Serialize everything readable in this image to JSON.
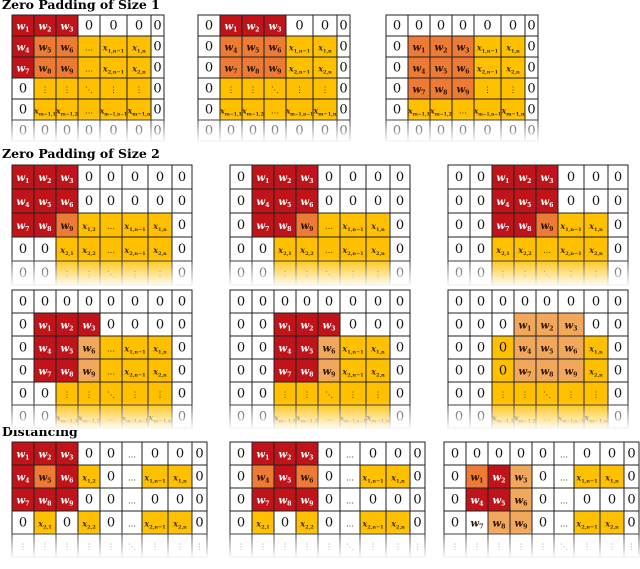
{
  "colors": {
    "red": "#c0141a",
    "orange": "#ed7b35",
    "lightOrange": "#f2a85c",
    "yellow": "#ffc000",
    "white": "#ffffff",
    "border": "#222222",
    "kernelText": "#ffffff",
    "dataText": "#3a2a00"
  },
  "sections": [
    {
      "id": "zp1",
      "title": "Zero Padding of Size 1"
    },
    {
      "id": "zp2",
      "title": "Zero Padding of Size 2"
    },
    {
      "id": "dist",
      "title": "Distancing"
    }
  ],
  "zp1_labels": [
    [
      "w1",
      "w2",
      "w3",
      "0",
      "0",
      "0",
      "0"
    ],
    [
      "w4",
      "w5",
      "w6",
      "…",
      "x1,n−1",
      "x1,n",
      "0"
    ],
    [
      "w7",
      "w8",
      "w9",
      "…",
      "x2,n−1",
      "x2,n",
      "0"
    ],
    [
      "0",
      "⋮",
      "⋮",
      "⋱",
      "⋮",
      "⋮",
      "0"
    ],
    [
      "0",
      "xm−1,1",
      "xm−1,2",
      "…",
      "xm−1,n−1",
      "xm−1,n",
      "0"
    ],
    [
      "0",
      "0",
      "0",
      "0",
      "0",
      "0",
      "0"
    ]
  ],
  "zp1_panels": [
    {
      "labels": [
        [
          "w1",
          "w2",
          "w3",
          "0",
          "0",
          "0",
          "0"
        ],
        [
          "w4",
          "w5",
          "w6",
          "…",
          "x1,n−1",
          "x1,n",
          "0"
        ],
        [
          "w7",
          "w8",
          "w9",
          "…",
          "x2,n−1",
          "x2,n",
          "0"
        ],
        [
          "0",
          "⋮",
          "⋮",
          "⋱",
          "⋮",
          "⋮",
          "0"
        ],
        [
          "0",
          "xm−1,1",
          "xm−1,2",
          "…",
          "xm−1,n−1",
          "xm−1,n",
          "0"
        ],
        [
          "0",
          "0",
          "0",
          "0",
          "0",
          "0",
          "0"
        ]
      ]
    },
    {
      "labels": [
        [
          "0",
          "w1",
          "w2",
          "w3",
          "0",
          "0",
          "0"
        ],
        [
          "0",
          "w4",
          "w5",
          "w6",
          "x1,n−1",
          "x1,n",
          "0"
        ],
        [
          "0",
          "w7",
          "w8",
          "w9",
          "x2,n−1",
          "x2,n",
          "0"
        ],
        [
          "0",
          "⋮",
          "⋮",
          "⋱",
          "⋮",
          "⋮",
          "0"
        ],
        [
          "0",
          "xm−1,1",
          "xm−1,2",
          "…",
          "xm−1,n−1",
          "xm−1,n",
          "0"
        ],
        [
          "0",
          "0",
          "0",
          "0",
          "0",
          "0",
          "0"
        ]
      ]
    },
    {
      "labels": [
        [
          "0",
          "0",
          "0",
          "0",
          "0",
          "0",
          "0"
        ],
        [
          "0",
          "w1",
          "w2",
          "w3",
          "x1,n−1",
          "x1,n",
          "0"
        ],
        [
          "0",
          "w4",
          "w5",
          "w6",
          "x2,n−1",
          "x2,n",
          "0"
        ],
        [
          "0",
          "w7",
          "w8",
          "w9",
          "⋮",
          "⋮",
          "0"
        ],
        [
          "0",
          "xm−1,1",
          "xm−1,2",
          "…",
          "xm−1,n−1",
          "xm−1,n",
          "0"
        ],
        [
          "0",
          "0",
          "0",
          "0",
          "0",
          "0",
          "0"
        ]
      ]
    }
  ],
  "zp2_panels": [
    {
      "labels": [
        [
          "w1",
          "w2",
          "w3",
          "0",
          "0",
          "0",
          "0",
          "0"
        ],
        [
          "w4",
          "w5",
          "w6",
          "0",
          "0",
          "0",
          "0",
          "0"
        ],
        [
          "w7",
          "w8",
          "w9",
          "x1,2",
          "…",
          "x1,n−1",
          "x1,n",
          "0"
        ],
        [
          "0",
          "0",
          "x2,1",
          "x2,2",
          "…",
          "x2,n−1",
          "x2,n",
          "0"
        ],
        [
          "0",
          "0",
          "⋮",
          "⋮",
          "⋱",
          "⋮",
          "⋮",
          "0"
        ]
      ]
    },
    {
      "labels": [
        [
          "0",
          "w1",
          "w2",
          "w3",
          "0",
          "0",
          "0",
          "0"
        ],
        [
          "0",
          "w4",
          "w5",
          "w6",
          "0",
          "0",
          "0",
          "0"
        ],
        [
          "0",
          "w7",
          "w8",
          "w9",
          "…",
          "x1,n−1",
          "x1,n",
          "0"
        ],
        [
          "0",
          "0",
          "x2,1",
          "x2,2",
          "…",
          "x2,n−1",
          "x2,n",
          "0"
        ],
        [
          "0",
          "0",
          "⋮",
          "⋮",
          "⋱",
          "⋮",
          "⋮",
          "0"
        ]
      ]
    },
    {
      "labels": [
        [
          "0",
          "0",
          "w1",
          "w2",
          "w3",
          "0",
          "0",
          "0"
        ],
        [
          "0",
          "0",
          "w4",
          "w5",
          "w6",
          "0",
          "0",
          "0"
        ],
        [
          "0",
          "0",
          "w7",
          "w8",
          "w9",
          "x1,n−1",
          "x1,n",
          "0"
        ],
        [
          "0",
          "0",
          "x2,1",
          "x2,2",
          "…",
          "x2,n−1",
          "x2,n",
          "0"
        ],
        [
          "0",
          "0",
          "⋮",
          "⋮",
          "⋱",
          "⋮",
          "⋮",
          "0"
        ]
      ]
    },
    {
      "labels": [
        [
          "0",
          "0",
          "0",
          "0",
          "0",
          "0",
          "0",
          "0"
        ],
        [
          "0",
          "w1",
          "w2",
          "w3",
          "0",
          "0",
          "0",
          "0"
        ],
        [
          "0",
          "w4",
          "w5",
          "w6",
          "…",
          "x1,n−1",
          "x1,n",
          "0"
        ],
        [
          "0",
          "w7",
          "w8",
          "w9",
          "…",
          "x2,n−1",
          "x2,n",
          "0"
        ],
        [
          "0",
          "0",
          "⋮",
          "⋮",
          "⋱",
          "⋮",
          "⋮",
          "0"
        ],
        [
          "0",
          "0",
          "xm−1,1",
          "xm−1,2",
          "…",
          "xm−1,n−1",
          "xm−1,n",
          "0"
        ]
      ]
    },
    {
      "labels": [
        [
          "0",
          "0",
          "0",
          "0",
          "0",
          "0",
          "0",
          "0"
        ],
        [
          "0",
          "0",
          "w1",
          "w2",
          "w3",
          "0",
          "0",
          "0"
        ],
        [
          "0",
          "0",
          "w4",
          "w5",
          "w6",
          "x1,n−1",
          "x1,n",
          "0"
        ],
        [
          "0",
          "0",
          "w7",
          "w8",
          "w9",
          "x2,n−1",
          "x2,n",
          "0"
        ],
        [
          "0",
          "0",
          "⋮",
          "⋮",
          "⋱",
          "⋮",
          "⋮",
          "0"
        ],
        [
          "0",
          "0",
          "xm−1,1",
          "xm−1,2",
          "…",
          "xm−1,n−1",
          "xm−1,n",
          "0"
        ]
      ]
    },
    {
      "labels": [
        [
          "0",
          "0",
          "0",
          "0",
          "0",
          "0",
          "0",
          "0"
        ],
        [
          "0",
          "0",
          "0",
          "w1",
          "w2",
          "w3",
          "0",
          "0"
        ],
        [
          "0",
          "0",
          "0",
          "w4",
          "w5",
          "w6",
          "x1,n",
          "0"
        ],
        [
          "0",
          "0",
          "0",
          "w7",
          "w8",
          "w9",
          "x2,n",
          "0"
        ],
        [
          "0",
          "0",
          "⋮",
          "⋮",
          "⋱",
          "⋮",
          "⋮",
          "0"
        ],
        [
          "0",
          "0",
          "xm−1,1",
          "xm−1,2",
          "…",
          "xm−1,n−1",
          "xm−1,n",
          "0"
        ]
      ]
    }
  ],
  "dist_panels": [
    {
      "labels": [
        [
          "w1",
          "w2",
          "w3",
          "0",
          "0",
          "…",
          "0",
          "0",
          "0"
        ],
        [
          "w4",
          "w5",
          "w6",
          "x1,2",
          "0",
          "…",
          "x1,n−1",
          "x1,n",
          "0"
        ],
        [
          "w7",
          "w8",
          "w9",
          "0",
          "0",
          "…",
          "0",
          "0",
          "0"
        ],
        [
          "0",
          "x2,1",
          "0",
          "x2,2",
          "0",
          "…",
          "x2,n−1",
          "x2,n",
          "0"
        ],
        [
          "⋮",
          "⋮",
          "⋮",
          "⋮",
          "⋮",
          "⋱",
          "⋮",
          "⋮",
          "⋮"
        ]
      ]
    },
    {
      "labels": [
        [
          "0",
          "w1",
          "w2",
          "w3",
          "0",
          "…",
          "0",
          "0",
          "0"
        ],
        [
          "0",
          "w4",
          "w5",
          "w6",
          "0",
          "…",
          "x1,n−1",
          "x1,n",
          "0"
        ],
        [
          "0",
          "w7",
          "w8",
          "w9",
          "0",
          "…",
          "0",
          "0",
          "0"
        ],
        [
          "0",
          "x2,1",
          "0",
          "x2,2",
          "0",
          "…",
          "x2,n−1",
          "x2,n",
          "0"
        ],
        [
          "⋮",
          "⋮",
          "⋮",
          "⋮",
          "⋮",
          "⋱",
          "⋮",
          "⋮",
          "⋮"
        ]
      ]
    },
    {
      "labels": [
        [
          "0",
          "0",
          "0",
          "0",
          "0",
          "…",
          "0",
          "0",
          "0"
        ],
        [
          "0",
          "w1",
          "w2",
          "w3",
          "0",
          "…",
          "x1,n−1",
          "x1,n",
          "0"
        ],
        [
          "0",
          "w4",
          "w5",
          "w6",
          "0",
          "…",
          "0",
          "0",
          "0"
        ],
        [
          "0",
          "w7",
          "w8",
          "w9",
          "0",
          "…",
          "x2,n−1",
          "x2,n",
          "0"
        ],
        [
          "⋮",
          "⋮",
          "⋮",
          "⋮",
          "⋮",
          "⋱",
          "⋮",
          "⋮",
          "⋮"
        ]
      ]
    }
  ]
}
